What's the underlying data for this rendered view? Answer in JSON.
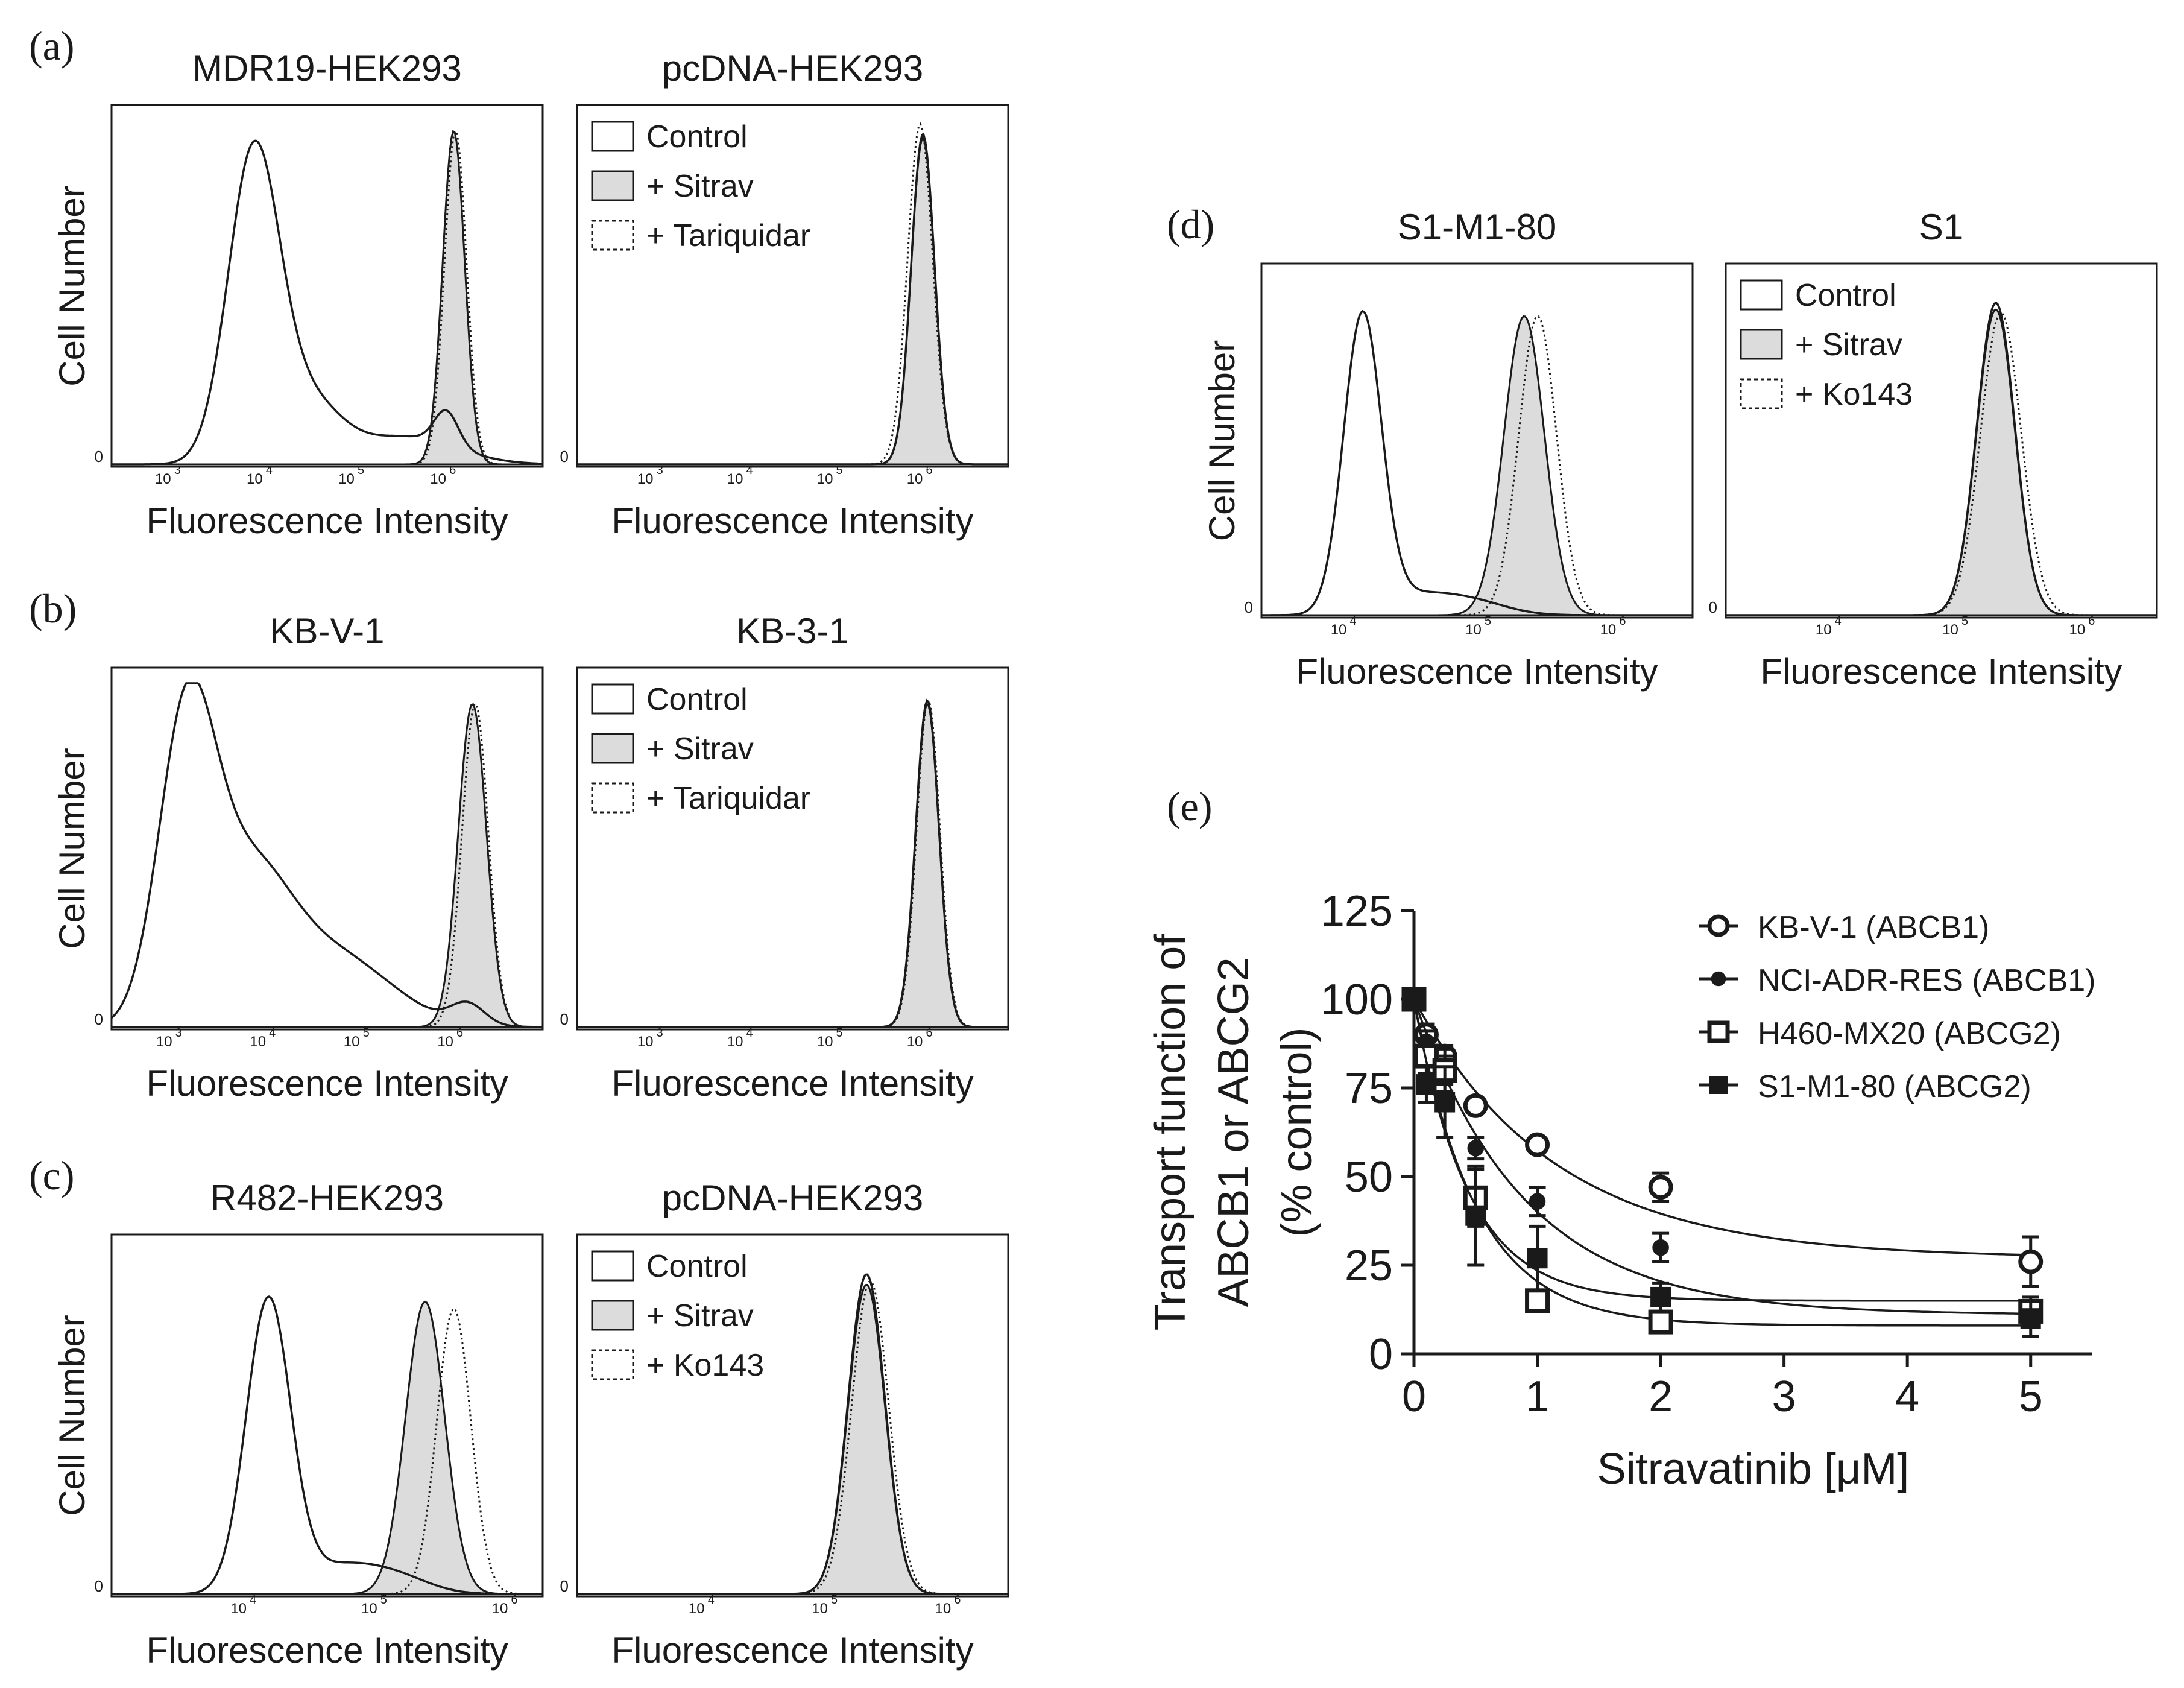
{
  "panels": [
    {
      "letter": "(a)",
      "xlabel": "Fluorescence Intensity",
      "ylabel": "Cell Number",
      "left": {
        "title": "MDR19-HEK293",
        "zero_label": "0",
        "ticks": [
          {
            "mantissa": "10",
            "exp": "3"
          },
          {
            "mantissa": "10",
            "exp": "4"
          },
          {
            "mantissa": "10",
            "exp": "5"
          },
          {
            "mantissa": "10",
            "exp": "6"
          }
        ],
        "x_range": [
          2.4,
          7.1
        ],
        "curves": [
          {
            "style": "control",
            "peaks": [
              {
                "mu": 3.95,
                "sigma": 0.28,
                "h": 0.9
              },
              {
                "mu": 4.55,
                "sigma": 0.35,
                "h": 0.17
              },
              {
                "mu": 5.6,
                "sigma": 0.55,
                "h": 0.08
              },
              {
                "mu": 6.05,
                "sigma": 0.13,
                "h": 0.1
              }
            ]
          },
          {
            "style": "sitrav",
            "peaks": [
              {
                "mu": 6.13,
                "sigma": 0.12,
                "h": 0.97
              }
            ]
          },
          {
            "style": "tariq",
            "peaks": [
              {
                "mu": 6.15,
                "sigma": 0.12,
                "h": 0.97
              }
            ]
          }
        ]
      },
      "right": {
        "title": "pcDNA-HEK293",
        "zero_label": "0",
        "ticks": [
          {
            "mantissa": "10",
            "exp": "3"
          },
          {
            "mantissa": "10",
            "exp": "4"
          },
          {
            "mantissa": "10",
            "exp": "5"
          },
          {
            "mantissa": "10",
            "exp": "6"
          }
        ],
        "x_range": [
          2.2,
          7.0
        ],
        "legend": [
          "Control",
          "+ Sitrav",
          "+ Tariquidar"
        ],
        "curves": [
          {
            "style": "control",
            "peaks": [
              {
                "mu": 6.05,
                "sigma": 0.13,
                "h": 0.96
              }
            ]
          },
          {
            "style": "sitrav",
            "peaks": [
              {
                "mu": 6.05,
                "sigma": 0.13,
                "h": 0.95
              }
            ]
          },
          {
            "style": "tariq",
            "peaks": [
              {
                "mu": 6.02,
                "sigma": 0.14,
                "h": 0.99
              }
            ]
          }
        ]
      }
    },
    {
      "letter": "(b)",
      "xlabel": "Fluorescence Intensity",
      "ylabel": "Cell Number",
      "left": {
        "title": "KB-V-1",
        "zero_label": "0",
        "ticks": [
          {
            "mantissa": "10",
            "exp": "3"
          },
          {
            "mantissa": "10",
            "exp": "4"
          },
          {
            "mantissa": "10",
            "exp": "5"
          },
          {
            "mantissa": "10",
            "exp": "6"
          }
        ],
        "x_range": [
          2.4,
          7.0
        ],
        "curves": [
          {
            "style": "control",
            "peaks": [
              {
                "mu": 3.2,
                "sigma": 0.3,
                "h": 0.85
              },
              {
                "mu": 3.85,
                "sigma": 0.45,
                "h": 0.42
              },
              {
                "mu": 4.8,
                "sigma": 0.6,
                "h": 0.2
              },
              {
                "mu": 6.2,
                "sigma": 0.18,
                "h": 0.06
              }
            ]
          },
          {
            "style": "sitrav",
            "peaks": [
              {
                "mu": 6.25,
                "sigma": 0.15,
                "h": 0.94
              }
            ]
          },
          {
            "style": "tariq",
            "peaks": [
              {
                "mu": 6.28,
                "sigma": 0.14,
                "h": 0.94
              }
            ]
          }
        ]
      },
      "right": {
        "title": "KB-3-1",
        "zero_label": "0",
        "ticks": [
          {
            "mantissa": "10",
            "exp": "3"
          },
          {
            "mantissa": "10",
            "exp": "4"
          },
          {
            "mantissa": "10",
            "exp": "5"
          },
          {
            "mantissa": "10",
            "exp": "6"
          }
        ],
        "x_range": [
          2.2,
          7.0
        ],
        "legend": [
          "Control",
          "+ Sitrav",
          "+ Tariquidar"
        ],
        "curves": [
          {
            "style": "control",
            "peaks": [
              {
                "mu": 6.1,
                "sigma": 0.13,
                "h": 0.95
              }
            ]
          },
          {
            "style": "sitrav",
            "peaks": [
              {
                "mu": 6.1,
                "sigma": 0.13,
                "h": 0.94
              }
            ]
          },
          {
            "style": "tariq",
            "peaks": [
              {
                "mu": 6.11,
                "sigma": 0.13,
                "h": 0.95
              }
            ]
          }
        ]
      }
    },
    {
      "letter": "(c)",
      "xlabel": "Fluorescence Intensity",
      "ylabel": "Cell Number",
      "left": {
        "title": "R482-HEK293",
        "zero_label": "0",
        "ticks": [
          {
            "mantissa": "10",
            "exp": "4"
          },
          {
            "mantissa": "10",
            "exp": "5"
          },
          {
            "mantissa": "10",
            "exp": "6"
          }
        ],
        "x_range": [
          3.0,
          6.3
        ],
        "curves": [
          {
            "style": "control",
            "peaks": [
              {
                "mu": 4.2,
                "sigma": 0.17,
                "h": 0.85
              },
              {
                "mu": 4.75,
                "sigma": 0.3,
                "h": 0.08
              },
              {
                "mu": 5.2,
                "sigma": 0.25,
                "h": 0.04
              }
            ]
          },
          {
            "style": "sitrav",
            "peaks": [
              {
                "mu": 5.4,
                "sigma": 0.15,
                "h": 0.85
              }
            ]
          },
          {
            "style": "tariq",
            "peaks": [
              {
                "mu": 5.62,
                "sigma": 0.13,
                "h": 0.83
              }
            ]
          }
        ]
      },
      "right": {
        "title": "pcDNA-HEK293",
        "zero_label": "0",
        "ticks": [
          {
            "mantissa": "10",
            "exp": "4"
          },
          {
            "mantissa": "10",
            "exp": "5"
          },
          {
            "mantissa": "10",
            "exp": "6"
          }
        ],
        "x_range": [
          3.0,
          6.5
        ],
        "legend": [
          "Control",
          "+ Sitrav",
          "+ Ko143"
        ],
        "curves": [
          {
            "style": "control",
            "peaks": [
              {
                "mu": 5.35,
                "sigma": 0.15,
                "h": 0.93
              }
            ]
          },
          {
            "style": "sitrav",
            "peaks": [
              {
                "mu": 5.35,
                "sigma": 0.15,
                "h": 0.9
              }
            ]
          },
          {
            "style": "tariq",
            "peaks": [
              {
                "mu": 5.38,
                "sigma": 0.15,
                "h": 0.91
              }
            ]
          }
        ]
      }
    },
    {
      "letter": "(d)",
      "xlabel": "Fluorescence Intensity",
      "ylabel": "Cell Number",
      "left": {
        "title": "S1-M1-80",
        "zero_label": "0",
        "ticks": [
          {
            "mantissa": "10",
            "exp": "4"
          },
          {
            "mantissa": "10",
            "exp": "5"
          },
          {
            "mantissa": "10",
            "exp": "6"
          }
        ],
        "x_range": [
          3.4,
          6.6
        ],
        "curves": [
          {
            "style": "control",
            "peaks": [
              {
                "mu": 4.15,
                "sigma": 0.14,
                "h": 0.88
              },
              {
                "mu": 4.55,
                "sigma": 0.3,
                "h": 0.06
              },
              {
                "mu": 5.0,
                "sigma": 0.25,
                "h": 0.03
              }
            ]
          },
          {
            "style": "sitrav",
            "peaks": [
              {
                "mu": 5.35,
                "sigma": 0.15,
                "h": 0.89
              }
            ]
          },
          {
            "style": "tariq",
            "peaks": [
              {
                "mu": 5.45,
                "sigma": 0.14,
                "h": 0.89
              }
            ]
          }
        ]
      },
      "right": {
        "title": "S1",
        "zero_label": "0",
        "ticks": [
          {
            "mantissa": "10",
            "exp": "4"
          },
          {
            "mantissa": "10",
            "exp": "5"
          },
          {
            "mantissa": "10",
            "exp": "6"
          }
        ],
        "x_range": [
          3.2,
          6.6
        ],
        "legend": [
          "Control",
          "+ Sitrav",
          "+ Ko143"
        ],
        "curves": [
          {
            "style": "control",
            "peaks": [
              {
                "mu": 5.33,
                "sigma": 0.15,
                "h": 0.93
              }
            ]
          },
          {
            "style": "sitrav",
            "peaks": [
              {
                "mu": 5.33,
                "sigma": 0.15,
                "h": 0.91
              }
            ]
          },
          {
            "style": "tariq",
            "peaks": [
              {
                "mu": 5.37,
                "sigma": 0.16,
                "h": 0.9
              }
            ]
          }
        ]
      }
    }
  ],
  "panel_e": {
    "letter": "(e)"
  },
  "chart_data": {
    "type": "scatter",
    "title": "",
    "xlabel": "Sitravatinib [μM]",
    "ylabel_lines": [
      "Transport function of",
      "ABCB1 or ABCG2",
      "(% control)"
    ],
    "xlim": [
      0,
      5.5
    ],
    "ylim": [
      0,
      125
    ],
    "x_ticks": [
      0,
      1,
      2,
      3,
      4,
      5
    ],
    "y_ticks": [
      0,
      25,
      50,
      75,
      100,
      125
    ],
    "series": [
      {
        "name": "KB-V-1 (ABCB1)",
        "marker": "open-circle",
        "x": [
          0,
          0.1,
          0.25,
          0.5,
          1,
          2,
          5
        ],
        "y": [
          100,
          90,
          84,
          70,
          59,
          47,
          26
        ],
        "err": [
          0,
          3,
          3,
          2,
          2,
          4,
          7
        ],
        "fit": {
          "bottom": 27,
          "top": 100,
          "k": 0.88
        }
      },
      {
        "name": "NCI-ADR-RES (ABCB1)",
        "marker": "filled-circle",
        "x": [
          0,
          0.1,
          0.25,
          0.5,
          1,
          2,
          5
        ],
        "y": [
          100,
          88,
          80,
          58,
          43,
          30,
          11
        ],
        "err": [
          0,
          3,
          4,
          3,
          4,
          4,
          3
        ],
        "fit": {
          "bottom": 11,
          "top": 100,
          "k": 1.12
        }
      },
      {
        "name": "H460-MX20 (ABCG2)",
        "marker": "open-square",
        "x": [
          0,
          0.1,
          0.25,
          0.5,
          1,
          2,
          5
        ],
        "y": [
          100,
          84,
          80,
          44,
          15,
          9,
          12
        ],
        "err": [
          0,
          5,
          6,
          8,
          3,
          2,
          4
        ],
        "fit": {
          "bottom": 8,
          "top": 100,
          "k": 2.0
        }
      },
      {
        "name": "S1-M1-80 (ABCG2)",
        "marker": "filled-square",
        "x": [
          0,
          0.1,
          0.25,
          0.5,
          1,
          2,
          5
        ],
        "y": [
          100,
          76,
          71,
          39,
          27,
          16,
          10
        ],
        "err": [
          0,
          5,
          10,
          14,
          9,
          4,
          5
        ],
        "fit": {
          "bottom": 15,
          "top": 100,
          "k": 2.3
        }
      }
    ]
  },
  "colors": {
    "ink": "#1a1a1a",
    "fill_gray": "#dcdcdc",
    "background": "#ffffff"
  }
}
